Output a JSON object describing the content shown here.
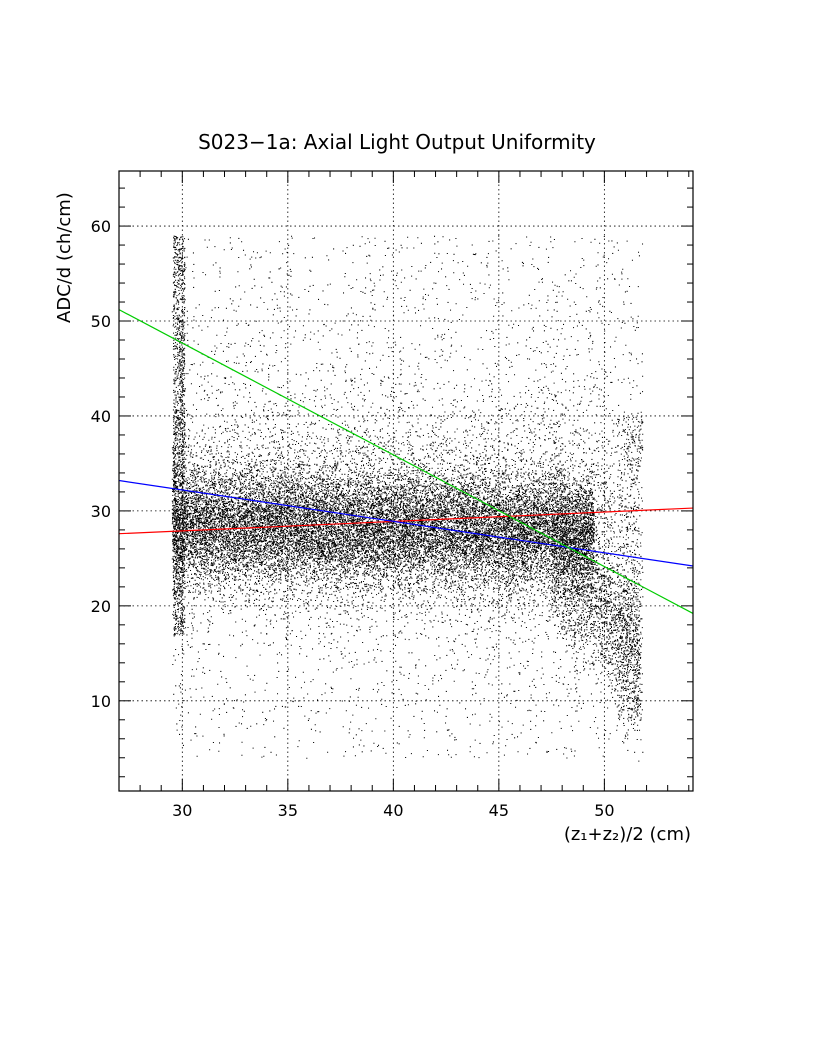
{
  "chart_data": {
    "type": "scatter",
    "title": "S023−1a: Axial Light Output Uniformity",
    "xlabel": "(z₁+z₂)/2 (cm)",
    "ylabel": "ADC/d (ch/cm)",
    "xlim": [
      27,
      54.2
    ],
    "ylim": [
      0.5,
      65.8
    ],
    "x_ticks": [
      30,
      35,
      40,
      45,
      50
    ],
    "y_ticks": [
      10,
      20,
      30,
      40,
      50,
      60
    ],
    "x_tick_labels": [
      "30",
      "35",
      "40",
      "45",
      "50"
    ],
    "y_tick_labels": [
      "10",
      "20",
      "30",
      "40",
      "50",
      "60"
    ],
    "grid": true,
    "grid_style": "dotted",
    "scatter_region": {
      "x_range": [
        29.5,
        51.8
      ],
      "y_range": [
        3,
        59.5
      ],
      "core_y_range": [
        22,
        35
      ],
      "point_color": "#000000"
    },
    "series": [
      {
        "kind": "fit-line",
        "color": "#ff0000",
        "x": [
          27,
          54.2
        ],
        "y": [
          27.6,
          30.3
        ]
      },
      {
        "kind": "fit-line",
        "color": "#0000ff",
        "x": [
          27,
          54.2
        ],
        "y": [
          33.2,
          24.2
        ]
      },
      {
        "kind": "fit-line",
        "color": "#00cc00",
        "x": [
          27,
          54.2
        ],
        "y": [
          51.2,
          19.2
        ]
      }
    ]
  }
}
